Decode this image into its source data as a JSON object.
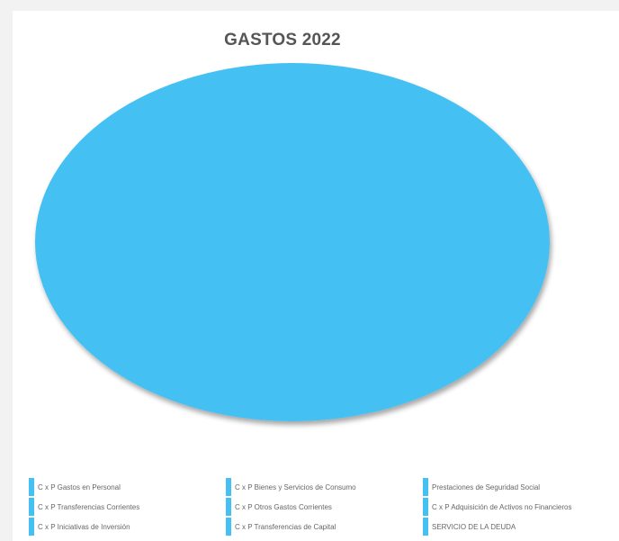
{
  "chart_data": {
    "type": "pie",
    "title": "GASTOS 2022",
    "categories": [
      "C x P Gastos en Personal",
      "C x P Bienes y Servicios de Consumo",
      "Prestaciones de Seguridad Social",
      "C x P Transferencias Corrientes",
      "C x P Otros Gastos Corrientes",
      "C x P Adquisición de Activos no Financieros",
      "C x P Iniciativas de Inversión",
      "C x P Transferencias de Capital",
      "SERVICIO DE LA DEUDA"
    ],
    "values": [
      100,
      0,
      0,
      0,
      0,
      0,
      0,
      0,
      0
    ],
    "colors": [
      "#45c0f2",
      "#45c0f2",
      "#45c0f2",
      "#45c0f2",
      "#45c0f2",
      "#45c0f2",
      "#45c0f2",
      "#45c0f2",
      "#45c0f2"
    ],
    "legend_position": "bottom",
    "grid": false
  }
}
